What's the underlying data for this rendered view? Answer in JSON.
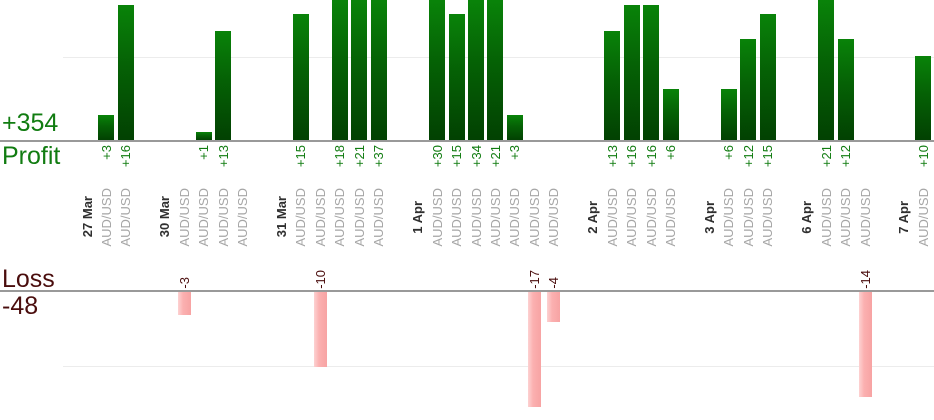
{
  "summary": {
    "profit_total": "+354",
    "profit_label": "Profit",
    "loss_label": "Loss",
    "loss_total": "-48"
  },
  "colors": {
    "profit_text": "#117c11",
    "loss_text": "#4a0d0d",
    "date_text": "#2f2f2f",
    "symbol_text": "#a6a6a6",
    "axis_line": "#999999",
    "gridline": "#ececec",
    "profit_bar": "#056105",
    "loss_bar": "#fbb0b0"
  },
  "chart_data": {
    "type": "bar",
    "title": "",
    "description": "Daily trade profit (green, top) and loss (pink, bottom) bars per trade",
    "profit_axis": {
      "zero_label_total": "+354",
      "label": "Profit",
      "gridlines": [
        10
      ],
      "bars_clipped_above": 17
    },
    "loss_axis": {
      "zero_label_total": "-48",
      "label": "Loss",
      "gridlines": [
        -10
      ],
      "bars_clipped_below": -16
    },
    "legend_position": "none",
    "grid": true,
    "groups": [
      {
        "date": "27 Mar",
        "trades": [
          {
            "symbol": "AUD/USD",
            "value": 3
          },
          {
            "symbol": "AUD/USD",
            "value": 16
          }
        ]
      },
      {
        "date": "30 Mar",
        "trades": [
          {
            "symbol": "AUD/USD",
            "value": -3
          },
          {
            "symbol": "AUD/USD",
            "value": 1
          },
          {
            "symbol": "AUD/USD",
            "value": 13
          },
          {
            "symbol": "AUD/USD",
            "value": 0
          }
        ]
      },
      {
        "date": "31 Mar",
        "trades": [
          {
            "symbol": "AUD/USD",
            "value": 15
          },
          {
            "symbol": "AUD/USD",
            "value": -10
          },
          {
            "symbol": "AUD/USD",
            "value": 18
          },
          {
            "symbol": "AUD/USD",
            "value": 21
          },
          {
            "symbol": "AUD/USD",
            "value": 37
          }
        ]
      },
      {
        "date": "1 Apr",
        "trades": [
          {
            "symbol": "AUD/USD",
            "value": 30
          },
          {
            "symbol": "AUD/USD",
            "value": 15
          },
          {
            "symbol": "AUD/USD",
            "value": 34
          },
          {
            "symbol": "AUD/USD",
            "value": 21
          },
          {
            "symbol": "AUD/USD",
            "value": 3
          },
          {
            "symbol": "AUD/USD",
            "value": -17
          },
          {
            "symbol": "AUD/USD",
            "value": -4
          }
        ]
      },
      {
        "date": "2 Apr",
        "trades": [
          {
            "symbol": "AUD/USD",
            "value": 13
          },
          {
            "symbol": "AUD/USD",
            "value": 16
          },
          {
            "symbol": "AUD/USD",
            "value": 16
          },
          {
            "symbol": "AUD/USD",
            "value": 6
          }
        ]
      },
      {
        "date": "3 Apr",
        "trades": [
          {
            "symbol": "AUD/USD",
            "value": 6
          },
          {
            "symbol": "AUD/USD",
            "value": 12
          },
          {
            "symbol": "AUD/USD",
            "value": 15
          }
        ]
      },
      {
        "date": "6 Apr",
        "trades": [
          {
            "symbol": "AUD/USD",
            "value": 21
          },
          {
            "symbol": "AUD/USD",
            "value": 12
          },
          {
            "symbol": "AUD/USD",
            "value": -14
          }
        ]
      },
      {
        "date": "7 Apr",
        "trades": [
          {
            "symbol": "AUD/USD",
            "value": 10
          }
        ]
      }
    ]
  }
}
